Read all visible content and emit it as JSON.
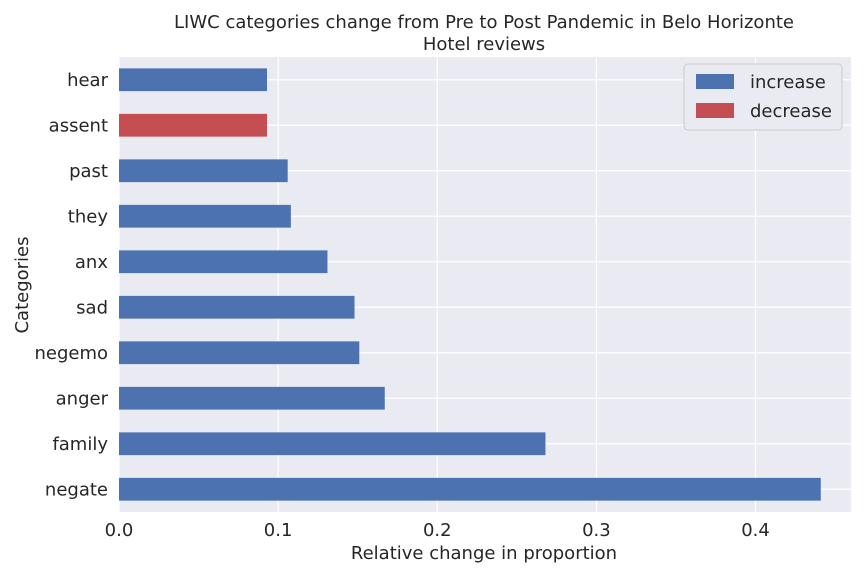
{
  "chart_data": {
    "type": "bar",
    "orientation": "horizontal",
    "title_line1": "LIWC categories change from Pre to Post Pandemic in Belo Horizonte",
    "title_line2": "Hotel reviews",
    "xlabel": "Relative change in proportion",
    "ylabel": "Categories",
    "xlim": [
      0,
      0.46
    ],
    "x_ticks": [
      0.0,
      0.1,
      0.2,
      0.3,
      0.4
    ],
    "x_tick_labels": [
      "0.0",
      "0.1",
      "0.2",
      "0.3",
      "0.4"
    ],
    "grid": true,
    "legend_position": "top-right",
    "legend": [
      {
        "label": "increase",
        "color": "#4c72b0"
      },
      {
        "label": "decrease",
        "color": "#c44e52"
      }
    ],
    "bars": [
      {
        "category": "negate",
        "value": 0.441,
        "direction": "increase"
      },
      {
        "category": "family",
        "value": 0.268,
        "direction": "increase"
      },
      {
        "category": "anger",
        "value": 0.167,
        "direction": "increase"
      },
      {
        "category": "negemo",
        "value": 0.151,
        "direction": "increase"
      },
      {
        "category": "sad",
        "value": 0.148,
        "direction": "increase"
      },
      {
        "category": "anx",
        "value": 0.131,
        "direction": "increase"
      },
      {
        "category": "they",
        "value": 0.108,
        "direction": "increase"
      },
      {
        "category": "past",
        "value": 0.106,
        "direction": "increase"
      },
      {
        "category": "assent",
        "value": 0.093,
        "direction": "decrease"
      },
      {
        "category": "hear",
        "value": 0.093,
        "direction": "increase"
      }
    ],
    "colors": {
      "plot_background": "#eaeaf2",
      "grid": "#ffffff",
      "increase": "#4c72b0",
      "decrease": "#c44e52"
    }
  }
}
